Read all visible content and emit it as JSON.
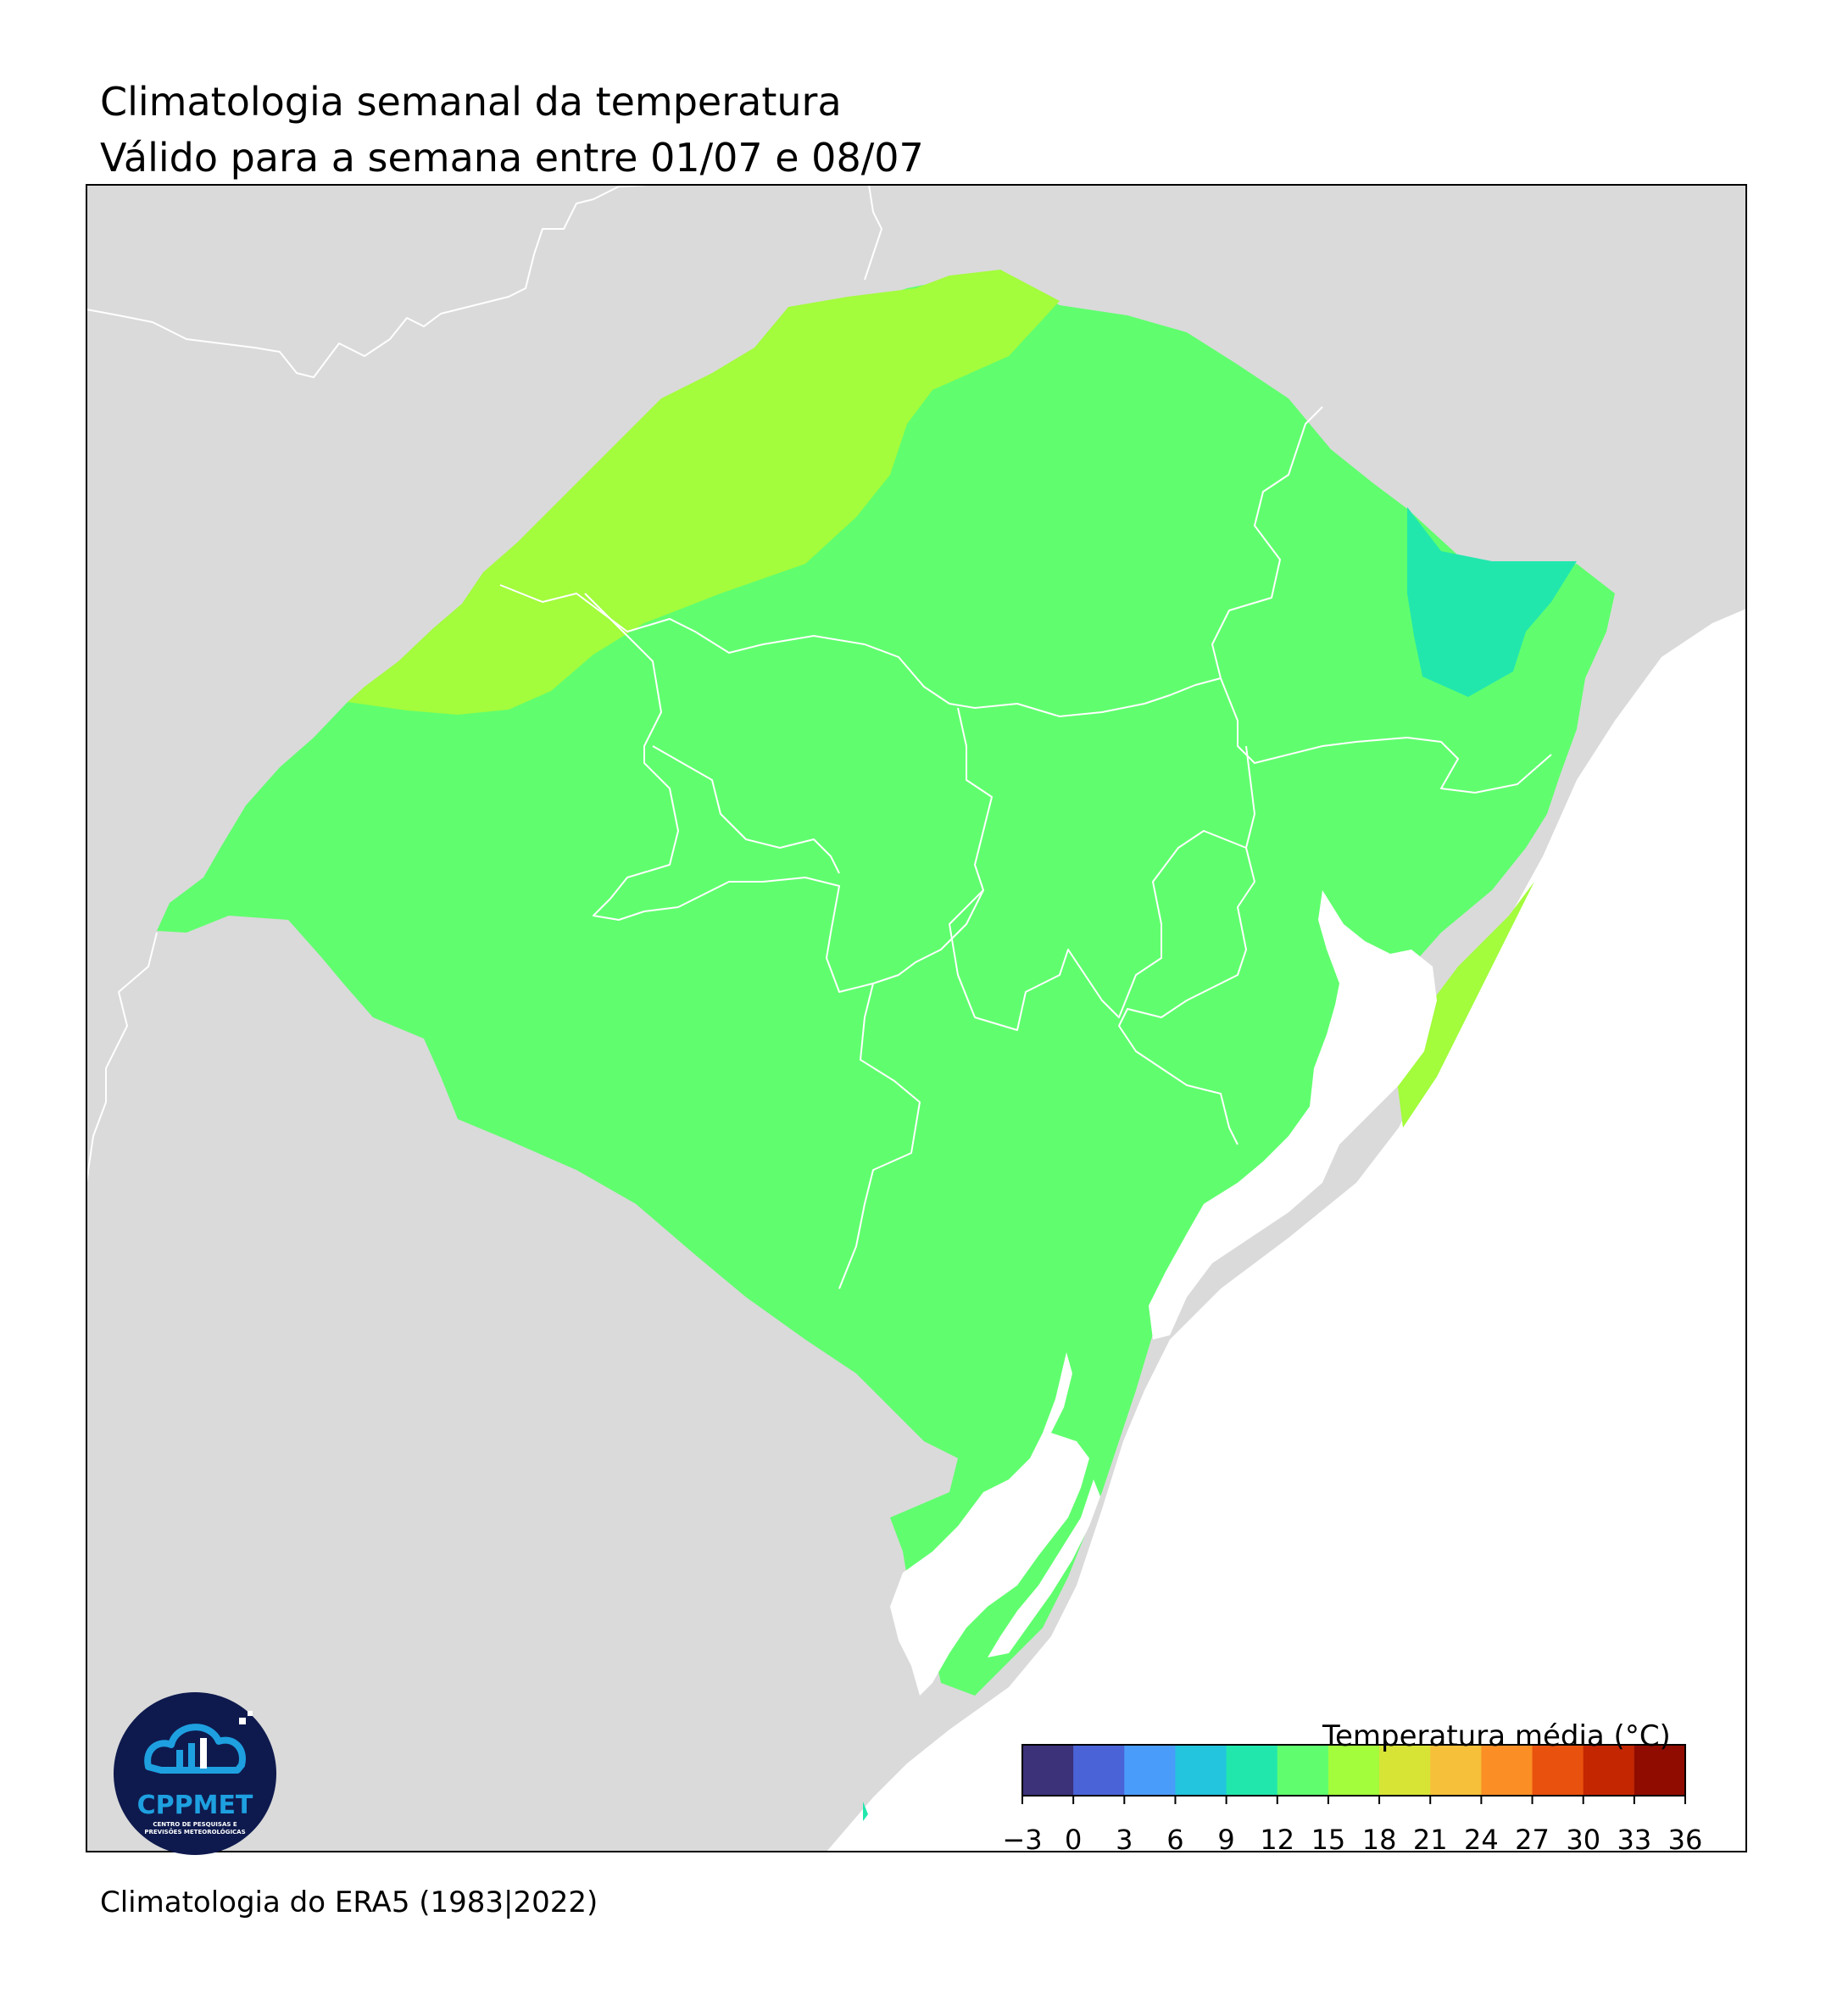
{
  "title": "Climatologia semanal da temperatura",
  "subtitle": "Válido para a semana entre 01/07 e 08/07",
  "footer": "Climatologia do ERA5 (1983|2022)",
  "colorbar": {
    "title": "Temperatura média (°C)",
    "ticks": [
      "−3",
      "0",
      "3",
      "6",
      "9",
      "12",
      "15",
      "18",
      "21",
      "24",
      "27",
      "30",
      "33",
      "36"
    ],
    "colors": [
      "#3b3279",
      "#4a64d8",
      "#4a9cfb",
      "#23c4dd",
      "#22e7ad",
      "#60fe6e",
      "#a3fc3c",
      "#d7e436",
      "#f6c03a",
      "#fb8f25",
      "#e9510e",
      "#c42602",
      "#900c00"
    ]
  },
  "logo": {
    "name": "CPPMET",
    "subtitle": "CENTRO DE PESQUISAS E PREVISÕES METEOROLÓGICAS"
  },
  "colors": {
    "land_outside": "#dadada",
    "temperature_12_15": "#60fe6e",
    "temperature_15_18": "#a3fc3c",
    "temperature_9_12": "#22e7ad",
    "water": "#ffffff",
    "logo_background": "#0e1a4e",
    "logo_accent": "#1ea0e0"
  },
  "chart_data": {
    "type": "heatmap",
    "region": "Rio Grande do Sul",
    "variable": "Temperatura média (°C)",
    "levels": [
      -3,
      0,
      3,
      6,
      9,
      12,
      15,
      18,
      21,
      24,
      27,
      30,
      33,
      36
    ],
    "classes_present": [
      {
        "range": [
          12,
          15
        ],
        "extent": "most of the state"
      },
      {
        "range": [
          15,
          18
        ],
        "extent": "northwest border band and southeast coastal strip"
      },
      {
        "range": [
          9,
          12
        ],
        "extent": "northeast highlands"
      }
    ]
  }
}
